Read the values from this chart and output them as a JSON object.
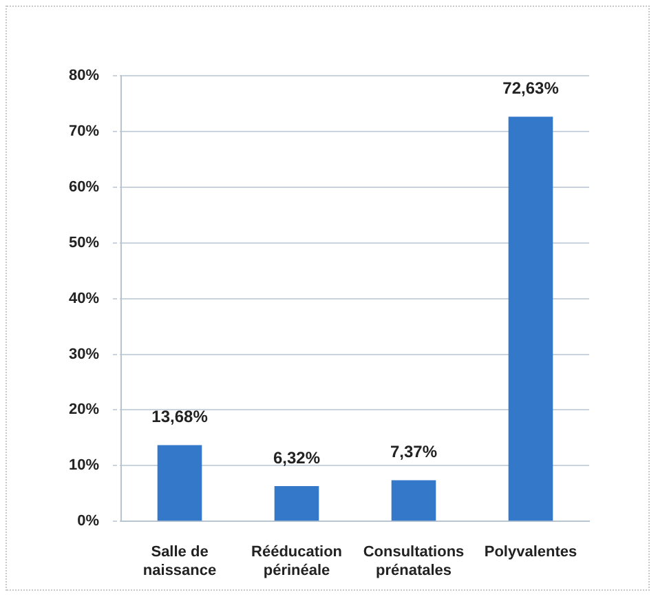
{
  "chart_data": {
    "type": "bar",
    "categories": [
      "Salle de naissance",
      "Rééducation périnéale",
      "Consultations prénatales",
      "Polyvalentes"
    ],
    "values": [
      13.68,
      6.32,
      7.37,
      72.63
    ],
    "color": "#3479c9",
    "value_labels": [
      "13,68%",
      "6,32%",
      "7,37%",
      "72,63%"
    ],
    "ylim": [
      0,
      80
    ],
    "yticks": [
      {
        "value": 0,
        "label": "0%"
      },
      {
        "value": 10,
        "label": "10%"
      },
      {
        "value": 20,
        "label": "20%"
      },
      {
        "value": 30,
        "label": "30%"
      },
      {
        "value": 40,
        "label": "40%"
      },
      {
        "value": 50,
        "label": "50%"
      },
      {
        "value": 60,
        "label": "60%"
      },
      {
        "value": 70,
        "label": "70%"
      },
      {
        "value": 80,
        "label": "80%"
      }
    ],
    "grid": "y"
  }
}
